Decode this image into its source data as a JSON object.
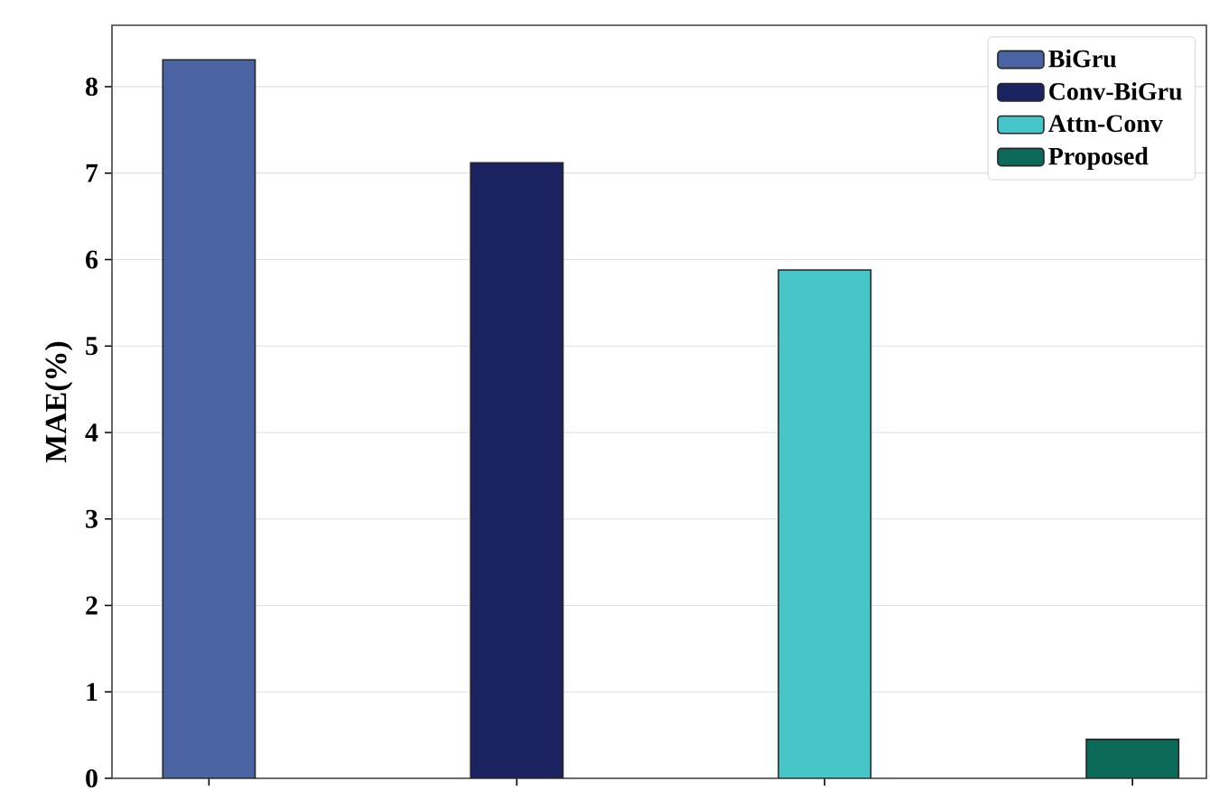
{
  "chart_data": {
    "type": "bar",
    "ylabel": "MAE(%)",
    "categories": [
      null,
      null,
      null,
      null
    ],
    "series": [
      {
        "name": "BiGru",
        "color": "#4a64a3",
        "values": [
          8.31,
          null,
          null,
          null
        ]
      },
      {
        "name": "Conv-BiGru",
        "color": "#1a2260",
        "values": [
          null,
          7.12,
          null,
          null
        ]
      },
      {
        "name": "Attn-Conv",
        "color": "#46c6c8",
        "values": [
          null,
          null,
          5.88,
          null
        ]
      },
      {
        "name": "Proposed",
        "color": "#0c6b58",
        "values": [
          null,
          null,
          null,
          0.45
        ]
      }
    ],
    "ylim": [
      0,
      8.71
    ],
    "yticks": [
      0,
      1,
      2,
      3,
      4,
      5,
      6,
      7,
      8
    ],
    "grid": "y",
    "legend": "top right",
    "tick_labels": "y"
  }
}
